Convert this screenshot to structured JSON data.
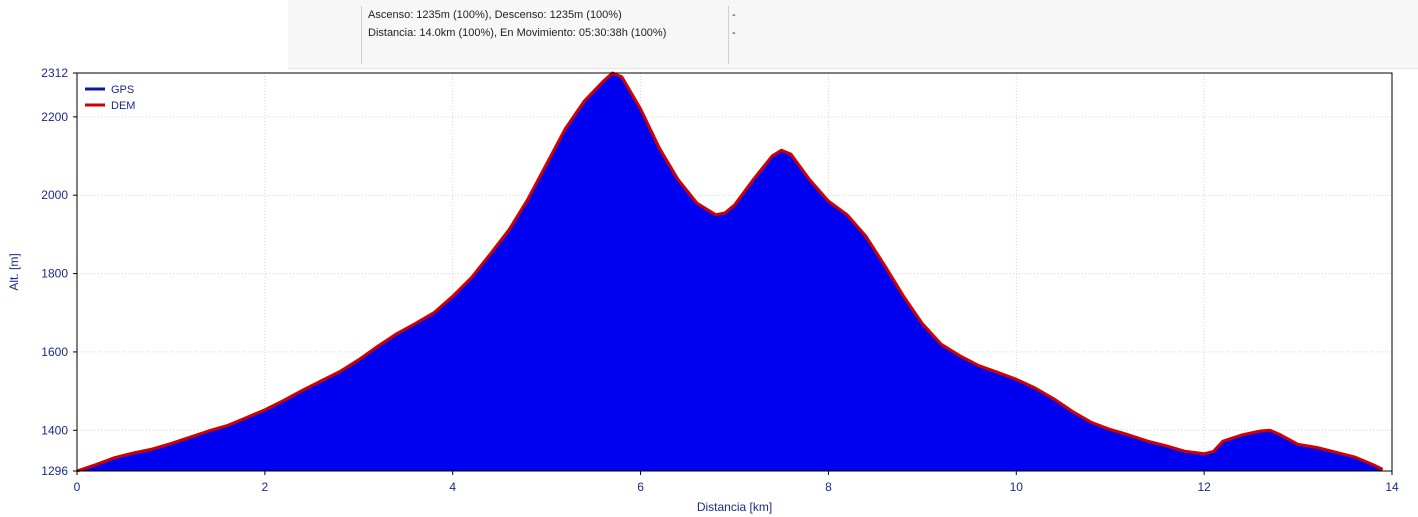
{
  "info": {
    "line1": "Ascenso: 1235m (100%), Descenso: 1235m (100%)",
    "line2": "Distancia: 14.0km (100%), En Movimiento: 05:30:38h (100%)",
    "right1": "-",
    "right2": "-"
  },
  "colors": {
    "fill": "#0000f0",
    "outline": "#d10000",
    "gps_legend": "#0a1a9a",
    "dem_legend": "#d10000",
    "grid": "#c8dcc8",
    "tick_text": "#1a2a8a"
  },
  "chart_data": {
    "type": "area",
    "xlabel": "Distancia [km]",
    "ylabel": "Alt. [m]",
    "xlim": [
      0,
      14
    ],
    "ylim": [
      1296,
      2312
    ],
    "x_ticks": [
      0,
      2,
      4,
      6,
      8,
      10,
      12,
      14
    ],
    "y_ticks": [
      1296,
      1400,
      1600,
      1800,
      2000,
      2200,
      2312
    ],
    "x_tick_labels": [
      "0",
      "2",
      "4",
      "6",
      "8",
      "10",
      "12",
      "14"
    ],
    "y_tick_labels": [
      "1296",
      "1400",
      "1600",
      "1800",
      "2000",
      "2200",
      "2312"
    ],
    "grid": true,
    "legend_position": "top-left",
    "series": [
      {
        "name": "GPS",
        "x": [
          0,
          0.2,
          0.4,
          0.6,
          0.8,
          1.0,
          1.2,
          1.4,
          1.6,
          1.8,
          2.0,
          2.2,
          2.4,
          2.6,
          2.8,
          3.0,
          3.2,
          3.4,
          3.6,
          3.8,
          4.0,
          4.2,
          4.4,
          4.6,
          4.8,
          5.0,
          5.2,
          5.4,
          5.6,
          5.7,
          5.8,
          6.0,
          6.2,
          6.4,
          6.6,
          6.8,
          6.9,
          7.0,
          7.2,
          7.4,
          7.5,
          7.6,
          7.8,
          8.0,
          8.2,
          8.4,
          8.6,
          8.8,
          9.0,
          9.2,
          9.4,
          9.6,
          9.8,
          10.0,
          10.2,
          10.4,
          10.6,
          10.8,
          11.0,
          11.2,
          11.4,
          11.6,
          11.8,
          12.0,
          12.1,
          12.2,
          12.4,
          12.6,
          12.7,
          12.8,
          13.0,
          13.2,
          13.4,
          13.6,
          13.8,
          13.9
        ],
        "values": [
          1296,
          1312,
          1330,
          1342,
          1352,
          1366,
          1382,
          1398,
          1412,
          1432,
          1452,
          1476,
          1502,
          1526,
          1550,
          1580,
          1614,
          1646,
          1672,
          1700,
          1742,
          1790,
          1850,
          1912,
          1990,
          2080,
          2170,
          2240,
          2290,
          2312,
          2302,
          2220,
          2120,
          2040,
          1980,
          1950,
          1955,
          1975,
          2040,
          2100,
          2115,
          2105,
          2040,
          1985,
          1950,
          1895,
          1820,
          1742,
          1672,
          1620,
          1590,
          1565,
          1548,
          1530,
          1508,
          1480,
          1448,
          1420,
          1402,
          1388,
          1372,
          1360,
          1346,
          1340,
          1346,
          1372,
          1388,
          1398,
          1400,
          1390,
          1364,
          1356,
          1344,
          1332,
          1312,
          1300
        ]
      },
      {
        "name": "DEM",
        "x": [
          0,
          0.2,
          0.4,
          0.6,
          0.8,
          1.0,
          1.2,
          1.4,
          1.6,
          1.8,
          2.0,
          2.2,
          2.4,
          2.6,
          2.8,
          3.0,
          3.2,
          3.4,
          3.6,
          3.8,
          4.0,
          4.2,
          4.4,
          4.6,
          4.8,
          5.0,
          5.2,
          5.4,
          5.6,
          5.7,
          5.8,
          6.0,
          6.2,
          6.4,
          6.6,
          6.8,
          6.9,
          7.0,
          7.2,
          7.4,
          7.5,
          7.6,
          7.8,
          8.0,
          8.2,
          8.4,
          8.6,
          8.8,
          9.0,
          9.2,
          9.4,
          9.6,
          9.8,
          10.0,
          10.2,
          10.4,
          10.6,
          10.8,
          11.0,
          11.2,
          11.4,
          11.6,
          11.8,
          12.0,
          12.1,
          12.2,
          12.4,
          12.6,
          12.7,
          12.8,
          13.0,
          13.2,
          13.4,
          13.6,
          13.8,
          13.9
        ],
        "values": [
          1296,
          1312,
          1330,
          1342,
          1352,
          1366,
          1382,
          1398,
          1412,
          1432,
          1452,
          1476,
          1502,
          1526,
          1550,
          1580,
          1614,
          1646,
          1672,
          1700,
          1742,
          1790,
          1850,
          1912,
          1990,
          2080,
          2170,
          2240,
          2290,
          2312,
          2302,
          2220,
          2120,
          2040,
          1980,
          1950,
          1955,
          1975,
          2040,
          2100,
          2115,
          2105,
          2040,
          1985,
          1950,
          1895,
          1820,
          1742,
          1672,
          1620,
          1590,
          1565,
          1548,
          1530,
          1508,
          1480,
          1448,
          1420,
          1402,
          1388,
          1372,
          1360,
          1346,
          1340,
          1346,
          1372,
          1388,
          1398,
          1400,
          1390,
          1364,
          1356,
          1344,
          1332,
          1312,
          1300
        ]
      }
    ]
  }
}
